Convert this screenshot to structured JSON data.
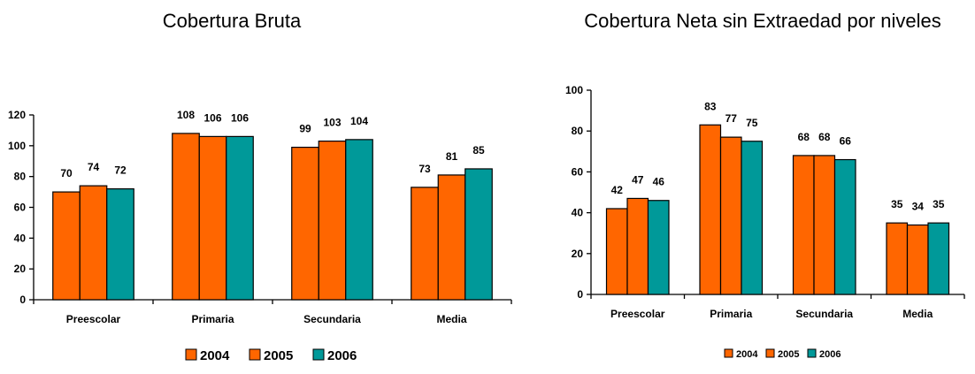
{
  "chart_data": [
    {
      "type": "bar",
      "title": "Cobertura Bruta",
      "xlabel": "",
      "ylabel": "",
      "categories": [
        "Preescolar",
        "Primaria",
        "Secundaria",
        "Media"
      ],
      "series": [
        {
          "name": "2004",
          "color": "#ff6600",
          "values": [
            70,
            108,
            99,
            73
          ]
        },
        {
          "name": "2005",
          "color": "#ff6600",
          "values": [
            74,
            106,
            103,
            81
          ]
        },
        {
          "name": "2006",
          "color": "#009999",
          "values": [
            72,
            106,
            104,
            85
          ]
        }
      ],
      "ylim": [
        0,
        120
      ],
      "yticks": [
        0,
        20,
        40,
        60,
        80,
        100,
        120
      ],
      "grid": false,
      "legend_position": "bottom"
    },
    {
      "type": "bar",
      "title": "Cobertura Neta sin Extraedad por niveles",
      "xlabel": "",
      "ylabel": "",
      "categories": [
        "Preescolar",
        "Primaria",
        "Secundaria",
        "Media"
      ],
      "series": [
        {
          "name": "2004",
          "color": "#ff6600",
          "values": [
            42,
            83,
            68,
            35
          ]
        },
        {
          "name": "2005",
          "color": "#ff6600",
          "values": [
            47,
            77,
            68,
            34
          ]
        },
        {
          "name": "2006",
          "color": "#009999",
          "values": [
            46,
            75,
            66,
            35
          ]
        }
      ],
      "ylim": [
        0,
        100
      ],
      "yticks": [
        0,
        20,
        40,
        60,
        80,
        100
      ],
      "grid": false,
      "legend_position": "bottom"
    }
  ]
}
